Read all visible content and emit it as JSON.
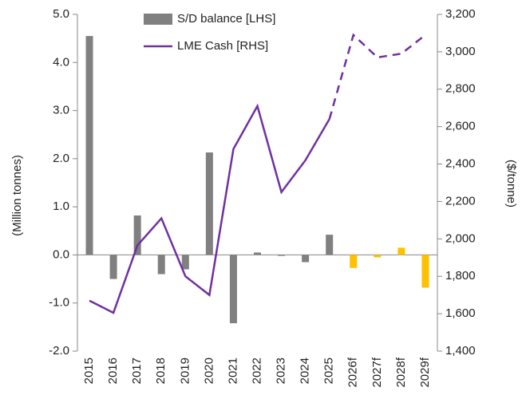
{
  "chart_data": {
    "type": "bar_line",
    "categories": [
      "2015",
      "2016",
      "2017",
      "2018",
      "2019",
      "2020",
      "2021",
      "2022",
      "2023",
      "2024",
      "2025",
      "2026f",
      "2027f",
      "2028f",
      "2029f"
    ],
    "series": [
      {
        "name": "S/D balance [LHS]",
        "type": "bar",
        "color": "#808080",
        "colors": [
          "#808080",
          "#808080",
          "#808080",
          "#808080",
          "#808080",
          "#808080",
          "#808080",
          "#808080",
          "#808080",
          "#808080",
          "#808080",
          "#ffc000",
          "#ffc000",
          "#ffc000",
          "#ffc000"
        ],
        "values": [
          4.55,
          -0.5,
          0.82,
          -0.4,
          -0.3,
          2.13,
          -1.42,
          0.05,
          -0.02,
          -0.15,
          0.42,
          -0.27,
          -0.05,
          0.15,
          -0.68
        ]
      },
      {
        "name": "LME Cash [RHS]",
        "type": "line",
        "axis": "y2",
        "color": "#7030a0",
        "dash_from_index": 10,
        "values": [
          1670,
          1605,
          1965,
          2110,
          1800,
          1700,
          2480,
          2710,
          2250,
          2420,
          2640,
          3090,
          2970,
          2990,
          3090
        ]
      }
    ],
    "ylabel": "(Million tonnes)",
    "y2label": "($/tonne)",
    "ylim": [
      -2,
      5
    ],
    "yticks": [
      {
        "value": -2,
        "label": "-2.0"
      },
      {
        "value": -1,
        "label": "-1.0"
      },
      {
        "value": 0,
        "label": "0.0"
      },
      {
        "value": 1,
        "label": "1.0"
      },
      {
        "value": 2,
        "label": "2.0"
      },
      {
        "value": 3,
        "label": "3.0"
      },
      {
        "value": 4,
        "label": "4.0"
      },
      {
        "value": 5,
        "label": "5.0"
      }
    ],
    "y2lim": [
      1400,
      3200
    ],
    "y2ticks": [
      {
        "value": 1400,
        "label": "1,400"
      },
      {
        "value": 1600,
        "label": "1,600"
      },
      {
        "value": 1800,
        "label": "1,800"
      },
      {
        "value": 2000,
        "label": "2,000"
      },
      {
        "value": 2200,
        "label": "2,200"
      },
      {
        "value": 2400,
        "label": "2,400"
      },
      {
        "value": 2600,
        "label": "2,600"
      },
      {
        "value": 2800,
        "label": "2,800"
      },
      {
        "value": 3000,
        "label": "3,000"
      },
      {
        "value": 3200,
        "label": "3,200"
      }
    ]
  }
}
